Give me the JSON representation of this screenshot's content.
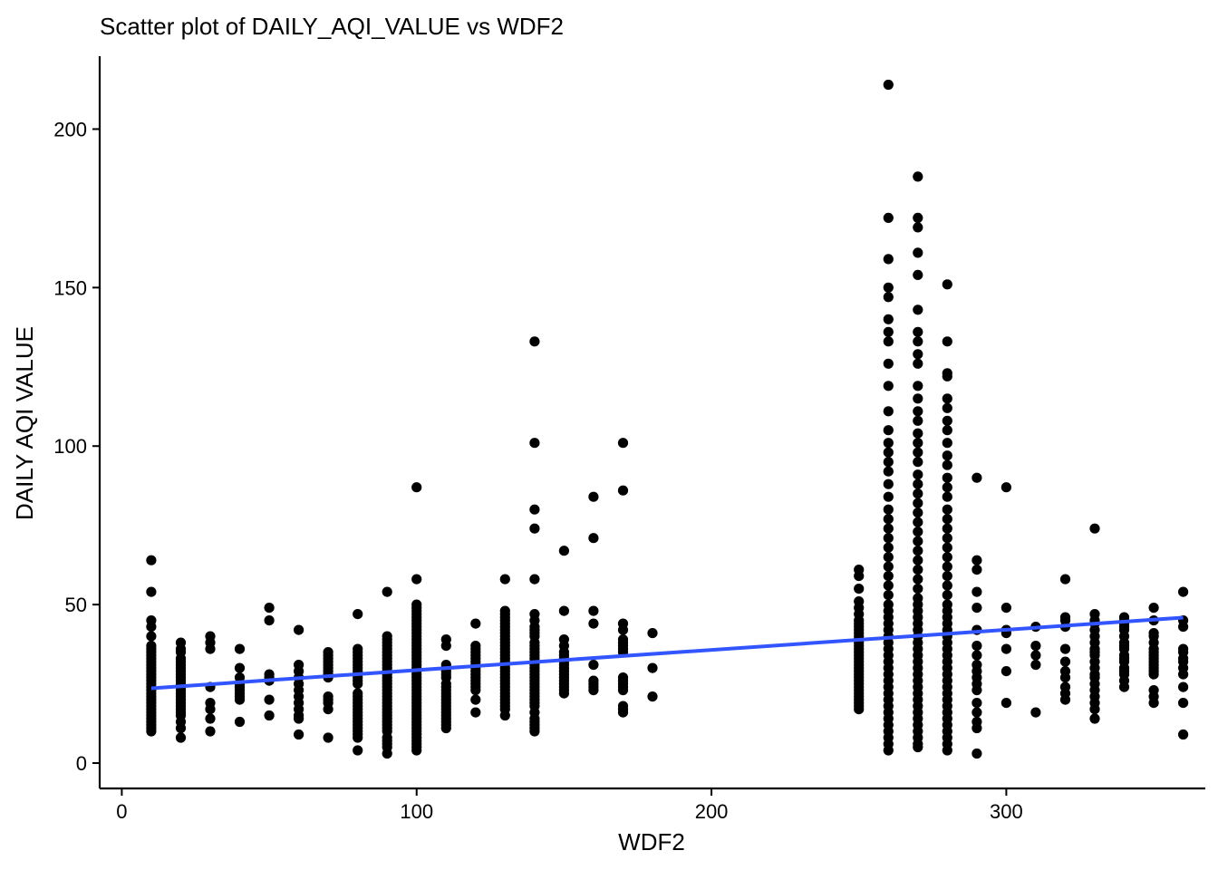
{
  "chart_data": {
    "type": "scatter",
    "title": "Scatter plot of DAILY_AQI_VALUE vs WDF2",
    "xlabel": "WDF2",
    "ylabel": "DAILY AQI VALUE",
    "xlim": [
      -7.5,
      367.5
    ],
    "ylim": [
      -8,
      223
    ],
    "xticks": [
      0,
      100,
      200,
      300
    ],
    "yticks": [
      0,
      50,
      100,
      150,
      200
    ],
    "grid": false,
    "legend": "none",
    "point_color": "#000000",
    "trend_color": "#3355FF",
    "trend_line": {
      "x": [
        10,
        360
      ],
      "y": [
        23.6,
        45.9
      ]
    },
    "points": [
      {
        "x": 10,
        "y": [
          64,
          54,
          45,
          43,
          40,
          37,
          36,
          35,
          34,
          33,
          32,
          31,
          30,
          29,
          28,
          27,
          26,
          25,
          24,
          23,
          22,
          21,
          20,
          19,
          18,
          17,
          16,
          15,
          14,
          13,
          12,
          11,
          10
        ]
      },
      {
        "x": 20,
        "y": [
          38,
          36,
          35,
          33,
          32,
          31,
          30,
          29,
          28,
          27,
          26,
          25,
          24,
          23,
          22,
          21,
          20,
          19,
          18,
          17,
          16,
          15,
          13,
          11,
          8
        ]
      },
      {
        "x": 30,
        "y": [
          40,
          38,
          36,
          24,
          19,
          17,
          14,
          10
        ]
      },
      {
        "x": 40,
        "y": [
          36,
          30,
          27,
          25,
          24,
          23,
          22,
          21,
          20,
          13
        ]
      },
      {
        "x": 50,
        "y": [
          49,
          45,
          28,
          27,
          26,
          20,
          15
        ]
      },
      {
        "x": 60,
        "y": [
          42,
          31,
          29,
          27,
          25,
          23,
          21,
          19,
          17,
          15,
          14,
          9
        ]
      },
      {
        "x": 70,
        "y": [
          35,
          34,
          33,
          32,
          31,
          30,
          29,
          28,
          27,
          21,
          20,
          19,
          17,
          8
        ]
      },
      {
        "x": 80,
        "y": [
          47,
          36,
          35,
          34,
          33,
          32,
          31,
          30,
          29,
          28,
          27,
          26,
          25,
          22,
          21,
          20,
          19,
          18,
          17,
          16,
          15,
          14,
          13,
          12,
          11,
          10,
          9,
          8,
          4
        ]
      },
      {
        "x": 90,
        "y": [
          54,
          40,
          39,
          38,
          37,
          36,
          35,
          34,
          33,
          32,
          31,
          30,
          29,
          28,
          27,
          26,
          25,
          24,
          23,
          22,
          21,
          20,
          19,
          18,
          17,
          16,
          15,
          14,
          13,
          12,
          11,
          10,
          8,
          7,
          6,
          5,
          3
        ]
      },
      {
        "x": 100,
        "y": [
          87,
          58,
          50,
          49,
          48,
          47,
          46,
          45,
          44,
          43,
          42,
          41,
          40,
          39,
          38,
          37,
          36,
          35,
          34,
          33,
          32,
          31,
          30,
          29,
          28,
          27,
          26,
          25,
          24,
          23,
          22,
          21,
          20,
          19,
          18,
          17,
          16,
          15,
          14,
          13,
          12,
          11,
          10,
          9,
          8,
          7,
          6,
          5,
          4
        ]
      },
      {
        "x": 110,
        "y": [
          39,
          37,
          31,
          30,
          29,
          28,
          27,
          25,
          24,
          23,
          22,
          21,
          20,
          19,
          18,
          17,
          16,
          15,
          14,
          13,
          12,
          11
        ]
      },
      {
        "x": 120,
        "y": [
          44,
          37,
          36,
          35,
          34,
          33,
          32,
          31,
          30,
          29,
          28,
          27,
          26,
          25,
          24,
          23,
          20,
          16
        ]
      },
      {
        "x": 130,
        "y": [
          58,
          48,
          47,
          46,
          45,
          44,
          43,
          42,
          41,
          40,
          39,
          38,
          37,
          36,
          35,
          34,
          33,
          32,
          31,
          30,
          29,
          28,
          27,
          26,
          25,
          24,
          23,
          22,
          21,
          20,
          19,
          18,
          17,
          15
        ]
      },
      {
        "x": 140,
        "y": [
          133,
          101,
          80,
          74,
          58,
          47,
          45,
          43,
          42,
          41,
          40,
          38,
          37,
          36,
          35,
          34,
          33,
          32,
          31,
          30,
          29,
          28,
          27,
          26,
          25,
          24,
          23,
          22,
          21,
          20,
          19,
          18,
          16,
          14,
          13,
          12,
          11,
          10
        ]
      },
      {
        "x": 150,
        "y": [
          67,
          48,
          39,
          37,
          35,
          34,
          33,
          32,
          31,
          30,
          29,
          28,
          27,
          26,
          25,
          24,
          23,
          22
        ]
      },
      {
        "x": 160,
        "y": [
          84,
          71,
          48,
          44,
          31,
          26,
          25,
          24,
          23
        ]
      },
      {
        "x": 170,
        "y": [
          101,
          86,
          44,
          42,
          39,
          38,
          37,
          36,
          35,
          27,
          26,
          25,
          24,
          23,
          18,
          17,
          16
        ]
      },
      {
        "x": 180,
        "y": [
          41,
          30,
          21
        ]
      },
      {
        "x": 250,
        "y": [
          61,
          59,
          55,
          51,
          49,
          47,
          45,
          44,
          43,
          42,
          41,
          40,
          39,
          38,
          37,
          36,
          35,
          34,
          33,
          32,
          31,
          30,
          29,
          28,
          27,
          26,
          25,
          24,
          23,
          22,
          21,
          20,
          19,
          18,
          17
        ]
      },
      {
        "x": 260,
        "y": [
          214,
          172,
          159,
          150,
          147,
          140,
          136,
          133,
          126,
          119,
          111,
          105,
          101,
          98,
          95,
          92,
          88,
          84,
          80,
          77,
          74,
          71,
          68,
          65,
          62,
          59,
          56,
          53,
          50,
          48,
          46,
          44,
          42,
          40,
          38,
          36,
          34,
          32,
          30,
          28,
          26,
          24,
          22,
          20,
          18,
          16,
          14,
          12,
          10,
          8,
          6,
          4
        ]
      },
      {
        "x": 270,
        "y": [
          185,
          172,
          169,
          161,
          154,
          143,
          136,
          133,
          129,
          126,
          119,
          115,
          111,
          108,
          104,
          101,
          98,
          95,
          91,
          88,
          85,
          82,
          79,
          76,
          73,
          70,
          67,
          64,
          61,
          58,
          55,
          52,
          50,
          48,
          46,
          44,
          42,
          40,
          38,
          36,
          34,
          32,
          30,
          28,
          26,
          24,
          22,
          20,
          18,
          16,
          14,
          12,
          10,
          8,
          6,
          5
        ]
      },
      {
        "x": 280,
        "y": [
          151,
          133,
          123,
          122,
          115,
          112,
          108,
          105,
          101,
          97,
          94,
          90,
          87,
          84,
          80,
          77,
          74,
          71,
          68,
          65,
          62,
          59,
          56,
          53,
          50,
          48,
          46,
          44,
          42,
          40,
          38,
          36,
          34,
          32,
          30,
          28,
          26,
          24,
          22,
          20,
          18,
          16,
          14,
          12,
          10,
          8,
          6,
          4
        ]
      },
      {
        "x": 290,
        "y": [
          90,
          64,
          61,
          54,
          49,
          42,
          37,
          34,
          31,
          29,
          27,
          25,
          23,
          19,
          16,
          13,
          11,
          3
        ]
      },
      {
        "x": 300,
        "y": [
          87,
          49,
          42,
          41,
          36,
          29,
          19
        ]
      },
      {
        "x": 310,
        "y": [
          43,
          37,
          34,
          31,
          16
        ]
      },
      {
        "x": 320,
        "y": [
          58,
          46,
          45,
          43,
          36,
          32,
          29,
          27,
          24,
          22,
          20
        ]
      },
      {
        "x": 330,
        "y": [
          74,
          47,
          45,
          44,
          42,
          40,
          38,
          36,
          35,
          34,
          32,
          30,
          28,
          27,
          25,
          23,
          21,
          19,
          17,
          14
        ]
      },
      {
        "x": 340,
        "y": [
          46,
          45,
          44,
          43,
          42,
          40,
          38,
          37,
          36,
          34,
          33,
          32,
          30,
          29,
          28,
          26,
          24
        ]
      },
      {
        "x": 350,
        "y": [
          49,
          45,
          41,
          40,
          38,
          36,
          35,
          34,
          33,
          32,
          31,
          30,
          29,
          28,
          23,
          21,
          19
        ]
      },
      {
        "x": 360,
        "y": [
          54,
          45,
          43,
          36,
          35,
          33,
          32,
          30,
          28,
          24,
          19,
          9
        ]
      }
    ]
  }
}
